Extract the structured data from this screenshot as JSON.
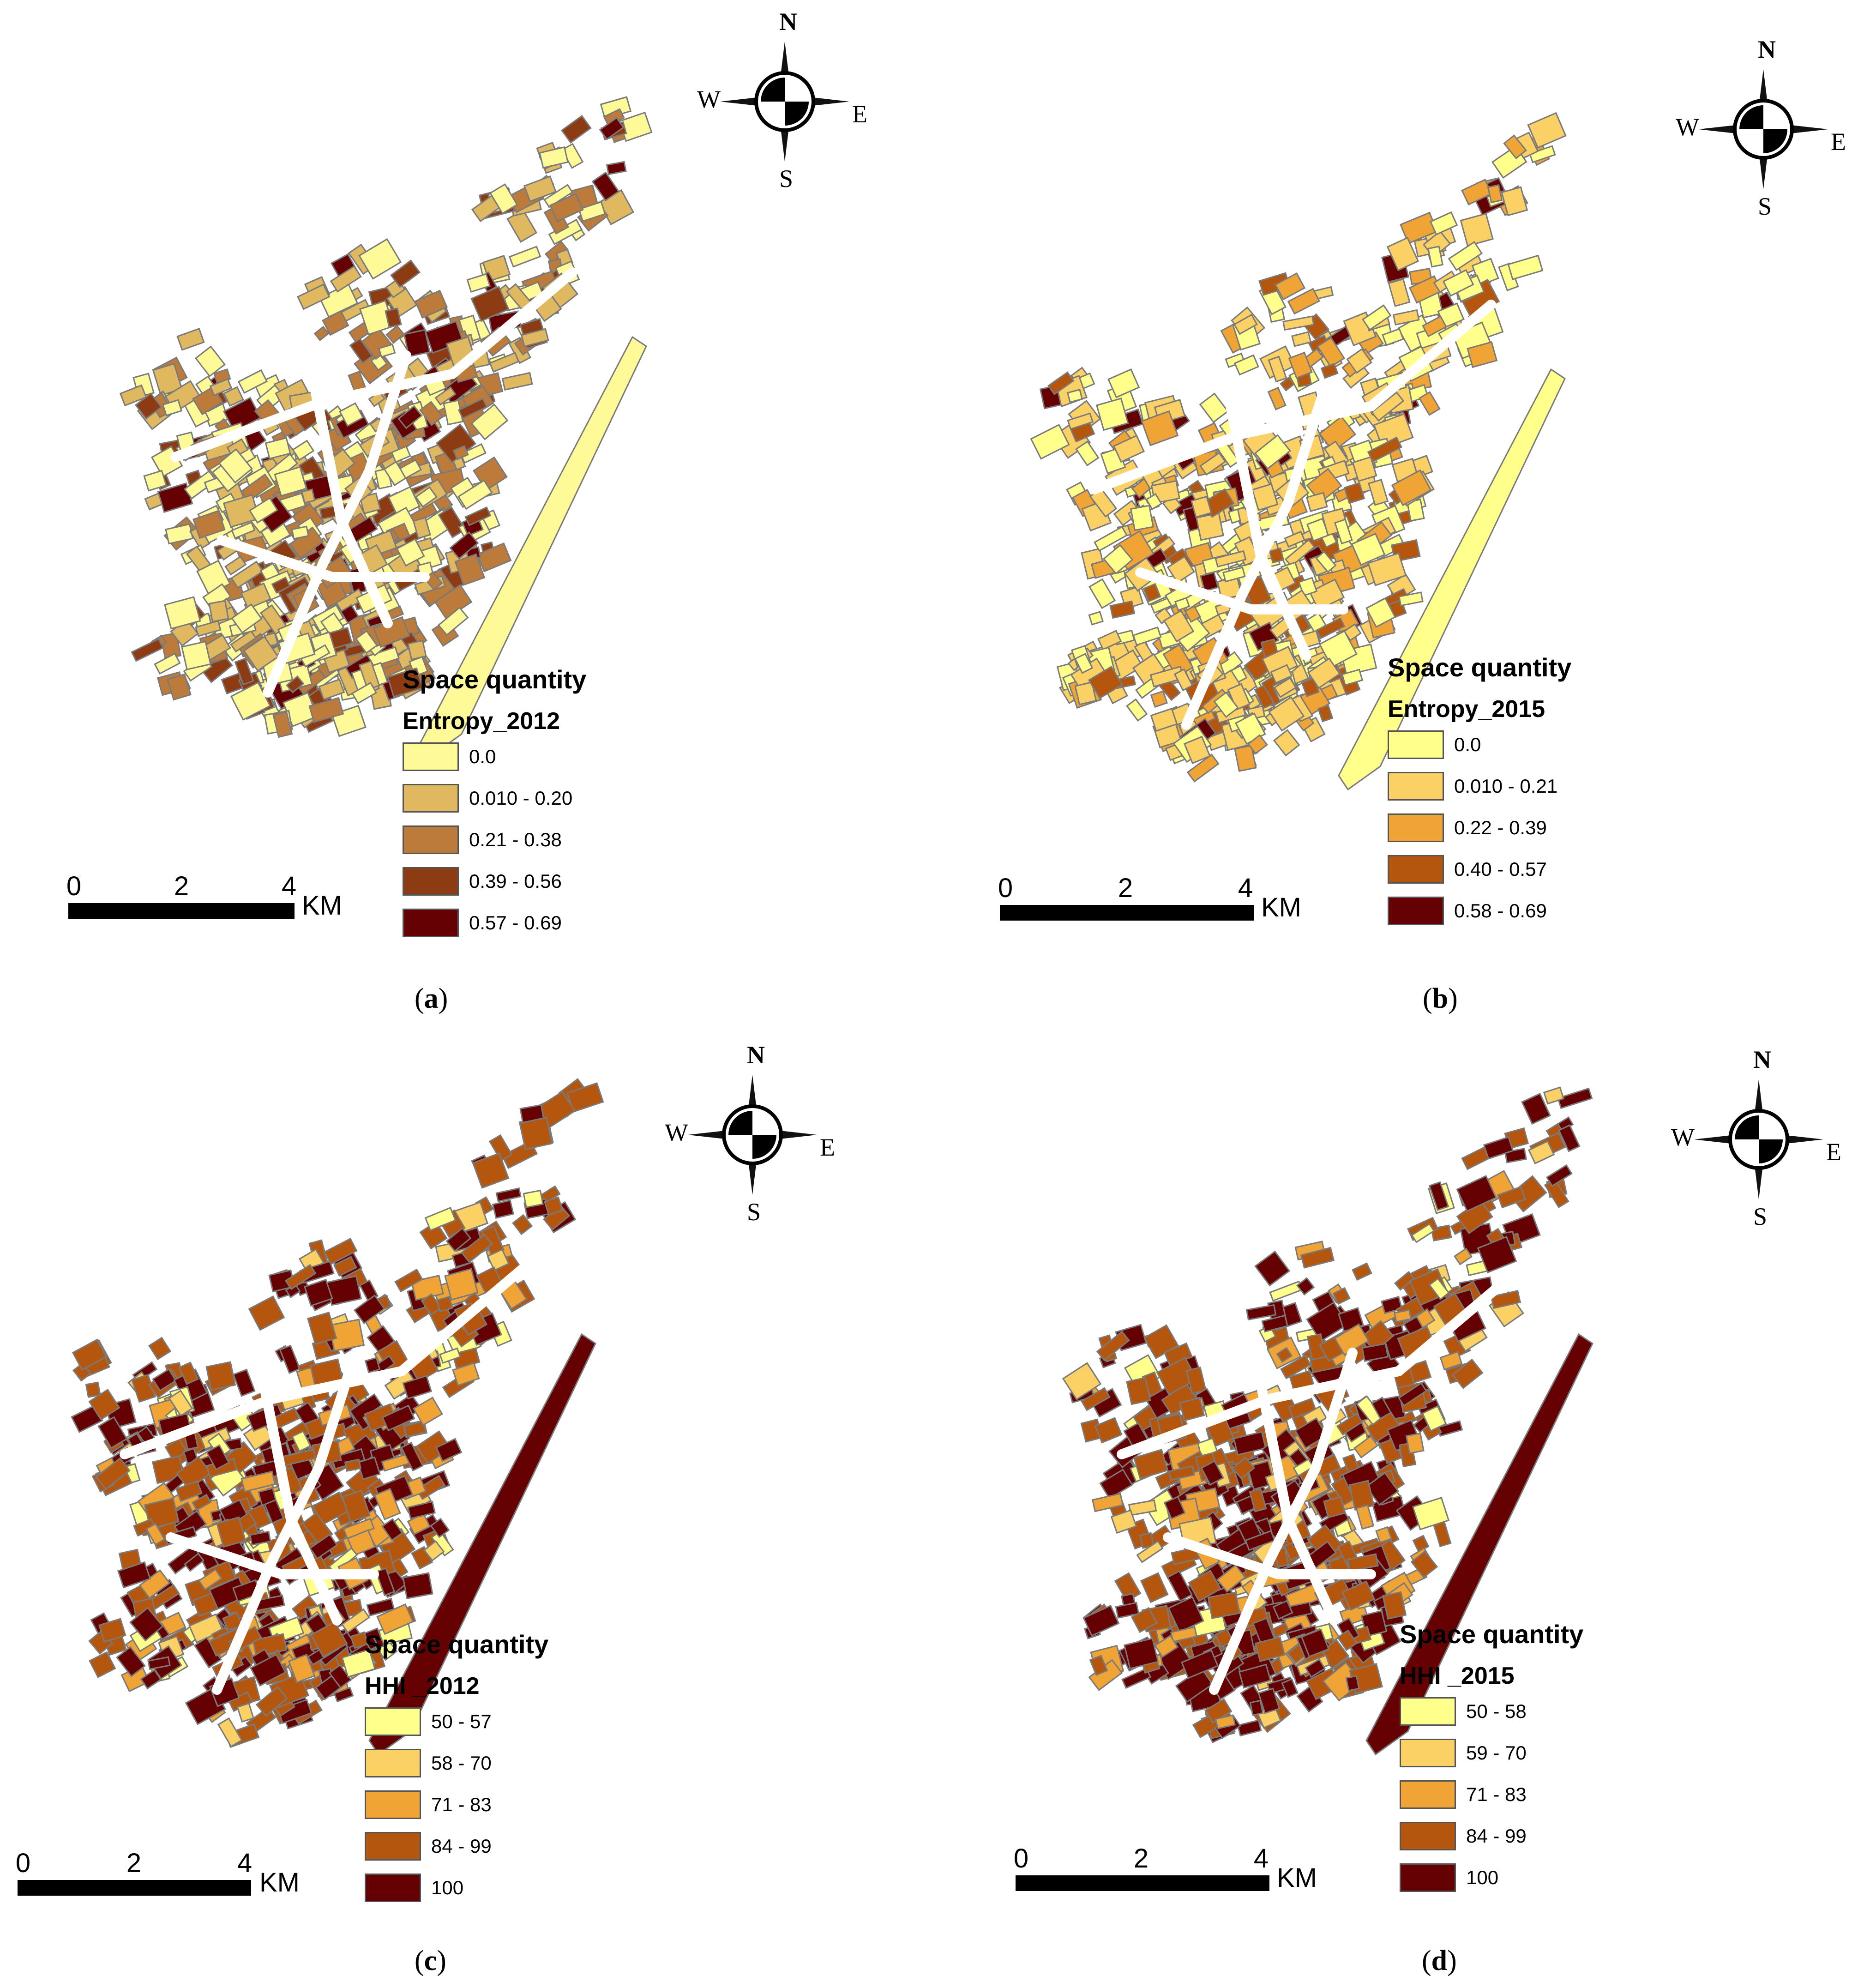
{
  "panels": [
    {
      "id": "a",
      "legend": {
        "title": "Space quantity",
        "field": "Entropy_2012",
        "classes": [
          {
            "label": "0.0",
            "color": "#fffa98"
          },
          {
            "label": "0.010 - 0.20",
            "color": "#dfb860"
          },
          {
            "label": "0.21 - 0.38",
            "color": "#bc7b3b"
          },
          {
            "label": "0.39 - 0.56",
            "color": "#8c3b13"
          },
          {
            "label": "0.57 - 0.69",
            "color": "#650003"
          }
        ]
      },
      "scalebar": {
        "ticks": [
          "0",
          "2",
          "4"
        ],
        "unit": "KM"
      },
      "compass": {
        "n": "N",
        "s": "S",
        "e": "E",
        "w": "W"
      },
      "caption": {
        "open": "(",
        "letter": "a",
        "close": ")"
      }
    },
    {
      "id": "b",
      "legend": {
        "title": "Space quantity",
        "field": "Entropy_2015",
        "classes": [
          {
            "label": "0.0",
            "color": "#ffff8c"
          },
          {
            "label": "0.010 - 0.21",
            "color": "#fbd065"
          },
          {
            "label": "0.22 - 0.39",
            "color": "#f0a436"
          },
          {
            "label": "0.40 - 0.57",
            "color": "#b5560f"
          },
          {
            "label": "0.58 - 0.69",
            "color": "#650003"
          }
        ]
      },
      "scalebar": {
        "ticks": [
          "0",
          "2",
          "4"
        ],
        "unit": "KM"
      },
      "compass": {
        "n": "N",
        "s": "S",
        "e": "E",
        "w": "W"
      },
      "caption": {
        "open": "(",
        "letter": "b",
        "close": ")"
      }
    },
    {
      "id": "c",
      "legend": {
        "title": "Space quantity",
        "field": "HHI _2012",
        "classes": [
          {
            "label": "50 - 57",
            "color": "#ffff8c"
          },
          {
            "label": "58 - 70",
            "color": "#fbd065"
          },
          {
            "label": "71 - 83",
            "color": "#f0a436"
          },
          {
            "label": "84 - 99",
            "color": "#b5560f"
          },
          {
            "label": "100",
            "color": "#650003"
          }
        ]
      },
      "scalebar": {
        "ticks": [
          "0",
          "2",
          "4"
        ],
        "unit": "KM"
      },
      "compass": {
        "n": "N",
        "s": "S",
        "e": "E",
        "w": "W"
      },
      "caption": {
        "open": "(",
        "letter": "c",
        "close": ")"
      }
    },
    {
      "id": "d",
      "legend": {
        "title": "Space quantity",
        "field": "HHI _2015",
        "classes": [
          {
            "label": "50 - 58",
            "color": "#ffff8c"
          },
          {
            "label": "59 - 70",
            "color": "#fbd065"
          },
          {
            "label": "71 - 83",
            "color": "#f0a436"
          },
          {
            "label": "84 - 99",
            "color": "#b5560f"
          },
          {
            "label": "100",
            "color": "#650003"
          }
        ]
      },
      "scalebar": {
        "ticks": [
          "0",
          "2",
          "4"
        ],
        "unit": "KM"
      },
      "compass": {
        "n": "N",
        "s": "S",
        "e": "E",
        "w": "W"
      },
      "caption": {
        "open": "(",
        "letter": "d",
        "close": ")"
      }
    }
  ]
}
